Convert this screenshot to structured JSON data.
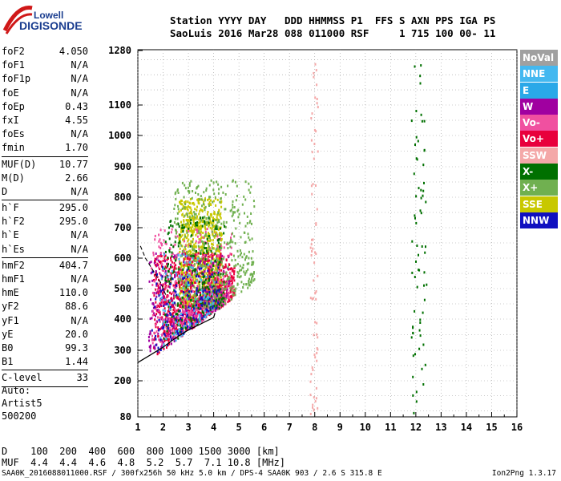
{
  "logo": {
    "line1": "Lowell",
    "line2": "DIGISONDE"
  },
  "header": {
    "line1": "Station YYYY DAY   DDD HHMMSS P1  FFS S AXN PPS IGA PS",
    "line2": "SaoLuis 2016 Mar28 088 011000 RSF     1 715 100 00- 11"
  },
  "params": [
    {
      "k": "foF2",
      "v": "4.050"
    },
    {
      "k": "foF1",
      "v": "N/A"
    },
    {
      "k": "foF1p",
      "v": "N/A"
    },
    {
      "k": "foE",
      "v": "N/A"
    },
    {
      "k": "foEp",
      "v": "0.43"
    },
    {
      "k": "fxI",
      "v": "4.55"
    },
    {
      "k": "foEs",
      "v": "N/A"
    },
    {
      "k": "fmin",
      "v": "1.70"
    },
    {
      "sep": true
    },
    {
      "k": "MUF(D)",
      "v": "10.77"
    },
    {
      "k": "M(D)",
      "v": "2.66"
    },
    {
      "k": "D",
      "v": "N/A"
    },
    {
      "sep": true
    },
    {
      "k": "h`F",
      "v": "295.0"
    },
    {
      "k": "h`F2",
      "v": "295.0"
    },
    {
      "k": "h`E",
      "v": "N/A"
    },
    {
      "k": "h`Es",
      "v": "N/A"
    },
    {
      "sep": true
    },
    {
      "k": "hmF2",
      "v": "404.7"
    },
    {
      "k": "hmF1",
      "v": "N/A"
    },
    {
      "k": "hmE",
      "v": "110.0"
    },
    {
      "k": "yF2",
      "v": "88.6"
    },
    {
      "k": "yF1",
      "v": "N/A"
    },
    {
      "k": "yE",
      "v": "20.0"
    },
    {
      "k": "B0",
      "v": "99.3"
    },
    {
      "k": "B1",
      "v": "1.44"
    },
    {
      "sep": true
    },
    {
      "k": "C-level",
      "v": "33"
    },
    {
      "sep": true
    }
  ],
  "auto": {
    "l1": "Auto:",
    "l2": "Artist5",
    "l3": "500200"
  },
  "legend": [
    {
      "label": "NoVal",
      "color": "#a0a0a0"
    },
    {
      "label": "NNE",
      "color": "#44b8f0"
    },
    {
      "label": "E",
      "color": "#2aa8e8"
    },
    {
      "label": "W",
      "color": "#a000a0"
    },
    {
      "label": "Vo-",
      "color": "#f050a0"
    },
    {
      "label": "Vo+",
      "color": "#e8003c"
    },
    {
      "label": "SSW",
      "color": "#f4a8a8"
    },
    {
      "label": "X-",
      "color": "#007000"
    },
    {
      "label": "X+",
      "color": "#70b050"
    },
    {
      "label": "SSE",
      "color": "#c8c800"
    },
    {
      "label": "NNW",
      "color": "#1010c0"
    }
  ],
  "axes": {
    "x_ticks": [
      "1",
      "2",
      "3",
      "4",
      "5",
      "6",
      "7",
      "8",
      "9",
      "10",
      "11",
      "12",
      "13",
      "14",
      "15",
      "16"
    ],
    "y_ticks": [
      "80",
      "200",
      "300",
      "400",
      "500",
      "600",
      "700",
      "800",
      "900",
      "1000",
      "1100",
      "1280"
    ]
  },
  "bottom": {
    "d_line": "D    100  200  400  600  800 1000 1500 3000 [km]",
    "muf_line": "MUF  4.4  4.4  4.6  4.8  5.2  5.7  7.1 10.8 [MHz]"
  },
  "footer": {
    "text": "SAA0K_2016088011000.RSF / 300fx256h 50 kHz 5.0 km / DPS-4 SAA0K 903 / 2.6 S 315.8 E",
    "version": "Ion2Png 1.3.17"
  },
  "chart_data": {
    "type": "scatter",
    "title": "",
    "xlabel": "",
    "ylabel": "",
    "xlim": [
      1,
      16
    ],
    "ylim": [
      80,
      1280
    ],
    "x_ticks": [
      1,
      2,
      3,
      4,
      5,
      6,
      7,
      8,
      9,
      10,
      11,
      12,
      13,
      14,
      15,
      16
    ],
    "y_ticks": [
      80,
      200,
      300,
      400,
      500,
      600,
      700,
      800,
      900,
      1000,
      1100,
      1280
    ],
    "grid": true,
    "legend_position": "right",
    "trace_fit": {
      "solid": [
        [
          1.0,
          260
        ],
        [
          1.5,
          285
        ],
        [
          2.0,
          310
        ],
        [
          2.5,
          340
        ],
        [
          3.0,
          365
        ],
        [
          3.5,
          385
        ],
        [
          4.0,
          405
        ],
        [
          4.05,
          420
        ]
      ],
      "dashed": [
        [
          1.1,
          640
        ],
        [
          1.3,
          600
        ],
        [
          1.6,
          560
        ],
        [
          1.9,
          520
        ],
        [
          2.1,
          480
        ]
      ]
    },
    "echo_regions": [
      {
        "name": "SSE",
        "color": "#c8c800",
        "x": [
          2.6,
          4.3
        ],
        "y": [
          440,
          800
        ]
      },
      {
        "name": "Vo+",
        "color": "#e8003c",
        "x": [
          1.6,
          4.8
        ],
        "y": [
          290,
          620
        ]
      },
      {
        "name": "W",
        "color": "#a000a0",
        "x": [
          1.4,
          4.6
        ],
        "y": [
          300,
          620
        ]
      },
      {
        "name": "Vo-",
        "color": "#f050a0",
        "x": [
          1.5,
          4.7
        ],
        "y": [
          320,
          700
        ]
      },
      {
        "name": "X+",
        "color": "#70b050",
        "x": [
          2.4,
          5.6
        ],
        "y": [
          440,
          860
        ]
      },
      {
        "name": "X-",
        "color": "#007000",
        "x": [
          2.0,
          4.4
        ],
        "y": [
          340,
          740
        ]
      },
      {
        "name": "NNE",
        "color": "#44b8f0",
        "x": [
          1.8,
          4.0
        ],
        "y": [
          300,
          620
        ]
      },
      {
        "name": "NNW",
        "color": "#1010c0",
        "x": [
          1.5,
          4.2
        ],
        "y": [
          300,
          580
        ]
      },
      {
        "name": "SSW",
        "color": "#f4a8a8",
        "x": [
          7.8,
          8.1
        ],
        "y": [
          90,
          1280
        ]
      },
      {
        "name": "X-",
        "color": "#007000",
        "x": [
          11.8,
          12.4
        ],
        "y": [
          90,
          1280
        ]
      }
    ]
  }
}
